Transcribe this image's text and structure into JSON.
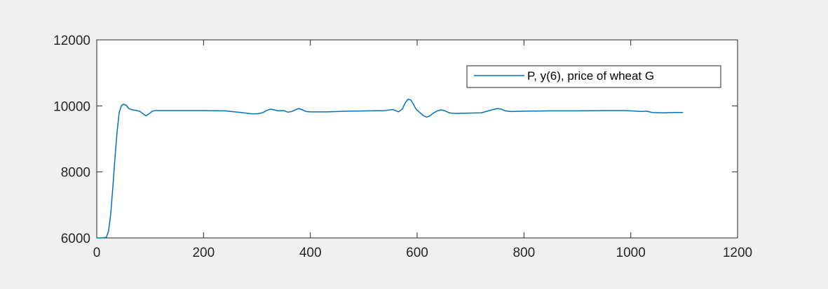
{
  "chart_data": {
    "type": "line",
    "title": "",
    "xlabel": "",
    "ylabel": "",
    "xlim": [
      0,
      1200
    ],
    "ylim": [
      6000,
      12000
    ],
    "x_ticks": [
      0,
      200,
      400,
      600,
      800,
      1000,
      1200
    ],
    "y_ticks": [
      6000,
      8000,
      10000,
      12000
    ],
    "x_tick_labels": [
      "0",
      "200",
      "400",
      "600",
      "800",
      "1000",
      "1200"
    ],
    "y_tick_labels": [
      "6000",
      "8000",
      "10000",
      "12000"
    ],
    "grid": false,
    "legend_position": "top-right",
    "series": [
      {
        "name": "P, y(6), price of wheat G",
        "color": "#0072bd",
        "x": [
          0,
          10,
          18,
          22,
          26,
          30,
          34,
          38,
          42,
          46,
          50,
          55,
          60,
          66,
          72,
          80,
          86,
          92,
          98,
          104,
          110,
          130,
          160,
          200,
          240,
          270,
          290,
          300,
          310,
          318,
          325,
          332,
          340,
          350,
          358,
          365,
          372,
          378,
          385,
          392,
          400,
          430,
          470,
          510,
          540,
          555,
          565,
          572,
          578,
          583,
          588,
          593,
          598,
          605,
          612,
          618,
          624,
          630,
          638,
          645,
          652,
          660,
          670,
          690,
          720,
          740,
          750,
          758,
          765,
          775,
          800,
          850,
          900,
          950,
          990,
          1010,
          1020,
          1030,
          1040,
          1060,
          1080,
          1097
        ],
        "values": [
          6000,
          6000,
          6020,
          6200,
          6700,
          7500,
          8400,
          9200,
          9800,
          10000,
          10050,
          10020,
          9920,
          9880,
          9870,
          9840,
          9770,
          9700,
          9760,
          9840,
          9860,
          9860,
          9860,
          9860,
          9850,
          9800,
          9760,
          9760,
          9790,
          9860,
          9900,
          9880,
          9850,
          9860,
          9810,
          9830,
          9880,
          9920,
          9880,
          9830,
          9820,
          9820,
          9840,
          9850,
          9860,
          9890,
          9820,
          9900,
          10100,
          10200,
          10180,
          10050,
          9900,
          9800,
          9700,
          9660,
          9700,
          9780,
          9850,
          9880,
          9850,
          9790,
          9770,
          9780,
          9790,
          9880,
          9920,
          9900,
          9850,
          9830,
          9840,
          9850,
          9850,
          9860,
          9860,
          9840,
          9830,
          9840,
          9800,
          9790,
          9800,
          9800
        ]
      }
    ]
  }
}
